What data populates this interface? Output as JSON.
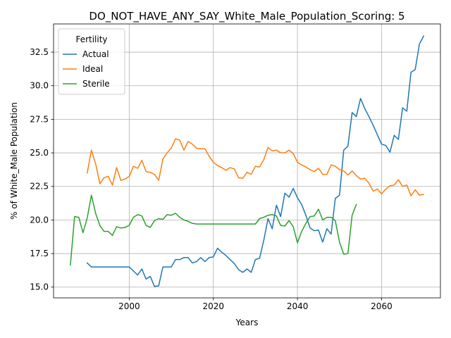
{
  "chart_data": {
    "type": "line",
    "title": "DO_NOT_HAVE_ANY_SAY_White_Male_Population_Scoring: 5",
    "xlabel": "Years",
    "ylabel": "% of White_Male Population",
    "xlim": [
      1982,
      2074
    ],
    "ylim": [
      14.2,
      34.6
    ],
    "xticks": [
      2000,
      2020,
      2040,
      2060
    ],
    "yticks": [
      15.0,
      17.5,
      20.0,
      22.5,
      25.0,
      27.5,
      30.0,
      32.5
    ],
    "grid": true,
    "legend": {
      "title": "Fertility",
      "position": "top-left"
    },
    "series": [
      {
        "name": "Actual",
        "color": "#1f77b4",
        "x": [
          1990,
          1991,
          1992,
          1993,
          1994,
          1995,
          1996,
          1997,
          1998,
          1999,
          2000,
          2001,
          2002,
          2003,
          2004,
          2005,
          2006,
          2007,
          2008,
          2009,
          2010,
          2011,
          2012,
          2013,
          2014,
          2015,
          2016,
          2017,
          2018,
          2019,
          2020,
          2021,
          2022,
          2023,
          2024,
          2025,
          2026,
          2027,
          2028,
          2029,
          2030,
          2031,
          2032,
          2033,
          2034,
          2035,
          2036,
          2037,
          2038,
          2039,
          2040,
          2041,
          2042,
          2043,
          2044,
          2045,
          2046,
          2047,
          2048,
          2049,
          2050,
          2051,
          2052,
          2053,
          2054,
          2055,
          2056,
          2057,
          2058,
          2059,
          2060,
          2061,
          2062,
          2063,
          2064,
          2065,
          2066,
          2067,
          2068,
          2069,
          2070
        ],
        "values": [
          16.8,
          16.5,
          16.5,
          16.5,
          16.5,
          16.5,
          16.5,
          16.5,
          16.5,
          16.5,
          16.5,
          16.2,
          15.9,
          16.35,
          15.6,
          15.8,
          15.05,
          15.1,
          16.5,
          16.5,
          16.5,
          17.05,
          17.05,
          17.2,
          17.2,
          16.8,
          16.9,
          17.2,
          16.9,
          17.2,
          17.25,
          17.9,
          17.6,
          17.35,
          17.05,
          16.75,
          16.3,
          16.1,
          16.35,
          16.1,
          17.05,
          17.15,
          18.5,
          20.1,
          19.35,
          21.1,
          20.25,
          22.0,
          21.7,
          22.35,
          21.65,
          21.15,
          20.35,
          19.4,
          19.2,
          19.25,
          18.35,
          19.35,
          18.95,
          21.6,
          21.85,
          25.2,
          25.5,
          28.0,
          27.7,
          29.05,
          28.3,
          27.7,
          27.05,
          26.35,
          25.65,
          25.55,
          25.05,
          26.3,
          26.0,
          28.35,
          28.1,
          31.0,
          31.2,
          33.1,
          33.7
        ]
      },
      {
        "name": "Ideal",
        "color": "#ff7f0e",
        "x": [
          1990,
          1991,
          1992,
          1993,
          1994,
          1995,
          1996,
          1997,
          1998,
          1999,
          2000,
          2001,
          2002,
          2003,
          2004,
          2005,
          2006,
          2007,
          2008,
          2009,
          2010,
          2011,
          2012,
          2013,
          2014,
          2015,
          2016,
          2017,
          2018,
          2019,
          2020,
          2021,
          2022,
          2023,
          2024,
          2025,
          2026,
          2027,
          2028,
          2029,
          2030,
          2031,
          2032,
          2033,
          2034,
          2035,
          2036,
          2037,
          2038,
          2039,
          2040,
          2041,
          2042,
          2043,
          2044,
          2045,
          2046,
          2047,
          2048,
          2049,
          2050,
          2051,
          2052,
          2053,
          2054,
          2055,
          2056,
          2057,
          2058,
          2059,
          2060,
          2061,
          2062,
          2063,
          2064,
          2065,
          2066,
          2067,
          2068,
          2069,
          2070
        ],
        "values": [
          23.5,
          25.2,
          24.2,
          22.7,
          23.15,
          23.25,
          22.6,
          23.9,
          22.95,
          23.05,
          23.25,
          24.0,
          23.85,
          24.45,
          23.6,
          23.55,
          23.4,
          22.95,
          24.55,
          25.0,
          25.35,
          26.05,
          25.95,
          25.2,
          25.85,
          25.65,
          25.35,
          25.3,
          25.3,
          24.75,
          24.3,
          24.05,
          23.9,
          23.7,
          23.9,
          23.8,
          23.15,
          23.1,
          23.55,
          23.4,
          24.0,
          23.95,
          24.5,
          25.4,
          25.15,
          25.2,
          25.0,
          25.0,
          25.2,
          24.95,
          24.3,
          24.1,
          23.95,
          23.75,
          23.6,
          23.85,
          23.4,
          23.4,
          24.1,
          24.0,
          23.75,
          23.65,
          23.35,
          23.65,
          23.3,
          23.05,
          23.1,
          22.75,
          22.15,
          22.3,
          21.95,
          22.3,
          22.55,
          22.6,
          23.0,
          22.5,
          22.6,
          21.8,
          22.25,
          21.85,
          21.9
        ]
      },
      {
        "name": "Sterile",
        "color": "#2ca02c",
        "x": [
          1986,
          1987,
          1988,
          1989,
          1990,
          1991,
          1992,
          1993,
          1994,
          1995,
          1996,
          1997,
          1998,
          1999,
          2000,
          2001,
          2002,
          2003,
          2004,
          2005,
          2006,
          2007,
          2008,
          2009,
          2010,
          2011,
          2012,
          2013,
          2014,
          2015,
          2016,
          2017,
          2018,
          2019,
          2020,
          2021,
          2022,
          2023,
          2024,
          2025,
          2026,
          2027,
          2028,
          2029,
          2030,
          2031,
          2032,
          2033,
          2034,
          2035,
          2036,
          2037,
          2038,
          2039,
          2040,
          2041,
          2042,
          2043,
          2044,
          2045,
          2046,
          2047,
          2048,
          2049,
          2050,
          2051,
          2052,
          2053,
          2054
        ],
        "values": [
          16.65,
          20.25,
          20.2,
          19.05,
          20.15,
          21.85,
          20.5,
          19.6,
          19.15,
          19.15,
          18.85,
          19.5,
          19.4,
          19.45,
          19.6,
          20.2,
          20.4,
          20.3,
          19.6,
          19.45,
          19.95,
          20.1,
          20.05,
          20.4,
          20.35,
          20.5,
          20.2,
          20.0,
          19.9,
          19.75,
          19.7,
          19.7,
          19.7,
          19.7,
          19.7,
          19.7,
          19.7,
          19.7,
          19.7,
          19.7,
          19.7,
          19.7,
          19.7,
          19.7,
          19.7,
          20.1,
          20.2,
          20.35,
          20.4,
          20.3,
          19.6,
          19.55,
          19.95,
          19.5,
          18.3,
          19.15,
          19.75,
          20.25,
          20.3,
          20.8,
          20.0,
          20.2,
          20.2,
          19.95,
          18.35,
          17.45,
          17.5,
          20.35,
          21.15
        ]
      }
    ]
  }
}
